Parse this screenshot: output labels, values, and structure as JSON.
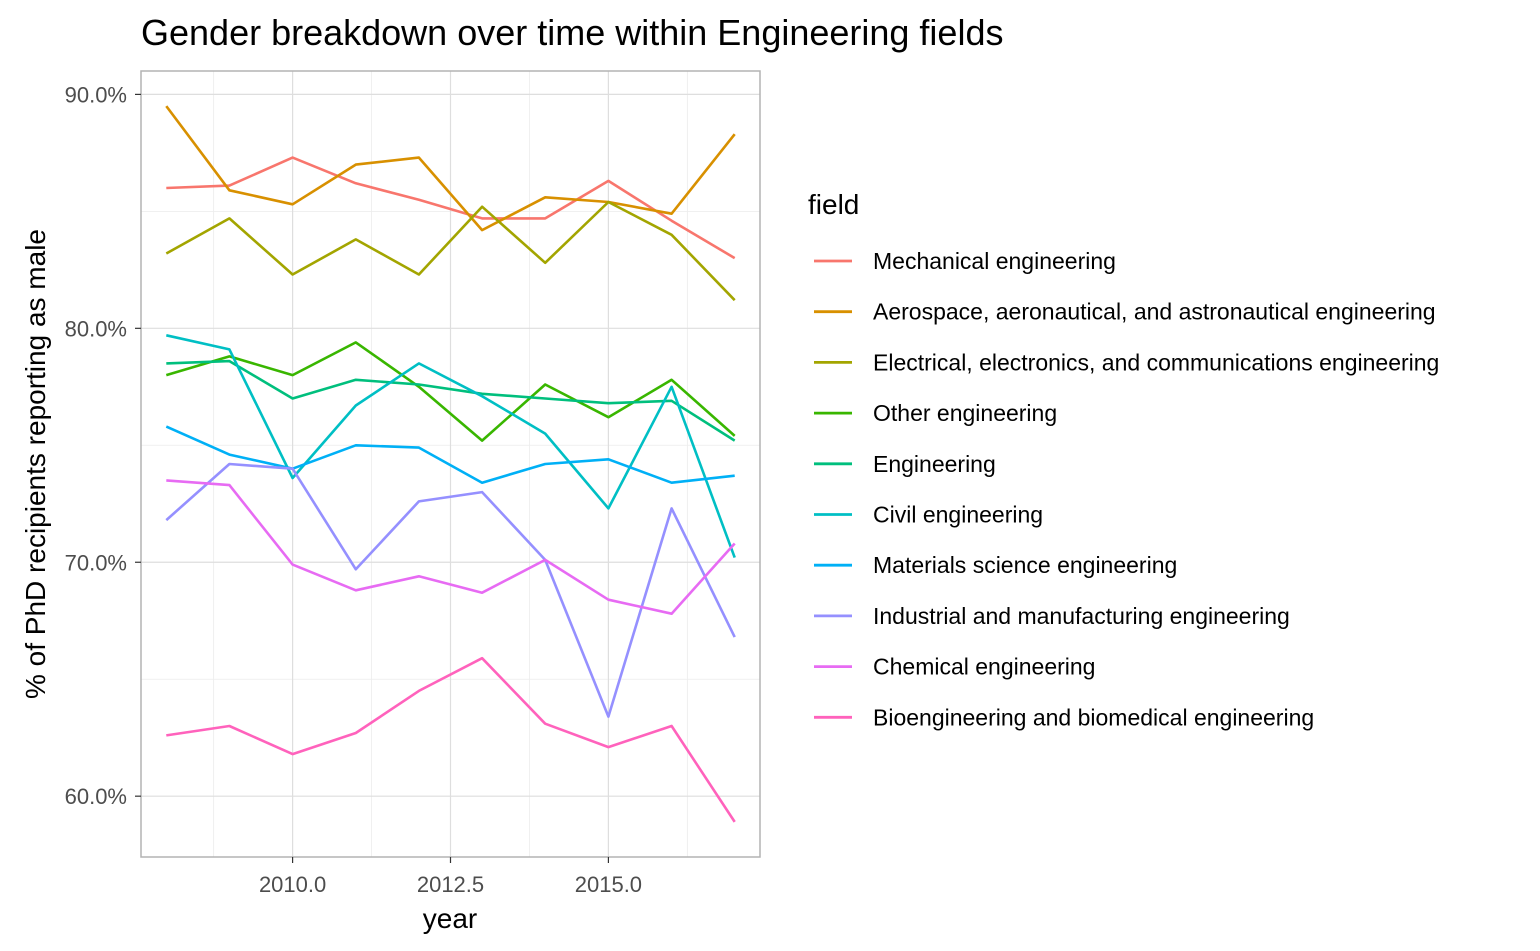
{
  "chart_data": {
    "type": "line",
    "title": "Gender breakdown over time within Engineering fields",
    "xlabel": "year",
    "ylabel": "% of PhD recipients reporting as male",
    "legend_title": "field",
    "legend_position": "right",
    "grid": true,
    "xlim": [
      2007.6,
      2017.4
    ],
    "ylim": [
      0.574,
      0.91
    ],
    "x_ticks": [
      2010.0,
      2012.5,
      2015.0
    ],
    "x_tick_labels": [
      "2010.0",
      "2012.5",
      "2015.0"
    ],
    "y_ticks": [
      0.6,
      0.7,
      0.8,
      0.9
    ],
    "y_tick_labels": [
      "60.0%",
      "70.0%",
      "80.0%",
      "90.0%"
    ],
    "x": [
      2008,
      2009,
      2010,
      2011,
      2012,
      2013,
      2014,
      2015,
      2016,
      2017
    ],
    "series": [
      {
        "name": "Mechanical engineering",
        "color": "#F8766D",
        "values": [
          0.86,
          0.861,
          0.873,
          0.862,
          0.855,
          0.847,
          0.847,
          0.863,
          0.846,
          0.83
        ]
      },
      {
        "name": "Aerospace, aeronautical, and astronautical engineering",
        "color": "#D89000",
        "values": [
          0.895,
          0.859,
          0.853,
          0.87,
          0.873,
          0.842,
          0.856,
          0.854,
          0.849,
          0.883
        ]
      },
      {
        "name": "Electrical, electronics, and communications engineering",
        "color": "#A3A500",
        "values": [
          0.832,
          0.847,
          0.823,
          0.838,
          0.823,
          0.852,
          0.828,
          0.854,
          0.84,
          0.812
        ]
      },
      {
        "name": "Other engineering",
        "color": "#39B600",
        "values": [
          0.78,
          0.788,
          0.78,
          0.794,
          0.775,
          0.752,
          0.776,
          0.762,
          0.778,
          0.754
        ]
      },
      {
        "name": "Engineering",
        "color": "#00BF7D",
        "values": [
          0.785,
          0.786,
          0.77,
          0.778,
          0.776,
          0.772,
          0.77,
          0.768,
          0.769,
          0.752
        ]
      },
      {
        "name": "Civil engineering",
        "color": "#00BFC4",
        "values": [
          0.797,
          0.791,
          0.736,
          0.767,
          0.785,
          0.771,
          0.755,
          0.723,
          0.775,
          0.702
        ]
      },
      {
        "name": "Materials science engineering",
        "color": "#00B0F6",
        "values": [
          0.758,
          0.746,
          0.74,
          0.75,
          0.749,
          0.734,
          0.742,
          0.744,
          0.734,
          0.737
        ]
      },
      {
        "name": "Industrial and manufacturing engineering",
        "color": "#9590FF",
        "values": [
          0.718,
          0.742,
          0.74,
          0.697,
          0.726,
          0.73,
          0.701,
          0.634,
          0.723,
          0.668
        ]
      },
      {
        "name": "Chemical engineering",
        "color": "#E76BF3",
        "values": [
          0.735,
          0.733,
          0.699,
          0.688,
          0.694,
          0.687,
          0.701,
          0.684,
          0.678,
          0.708
        ]
      },
      {
        "name": "Bioengineering and biomedical engineering",
        "color": "#FF62BC",
        "values": [
          0.626,
          0.63,
          0.618,
          0.627,
          0.645,
          0.659,
          0.631,
          0.621,
          0.63,
          0.589
        ]
      }
    ]
  }
}
